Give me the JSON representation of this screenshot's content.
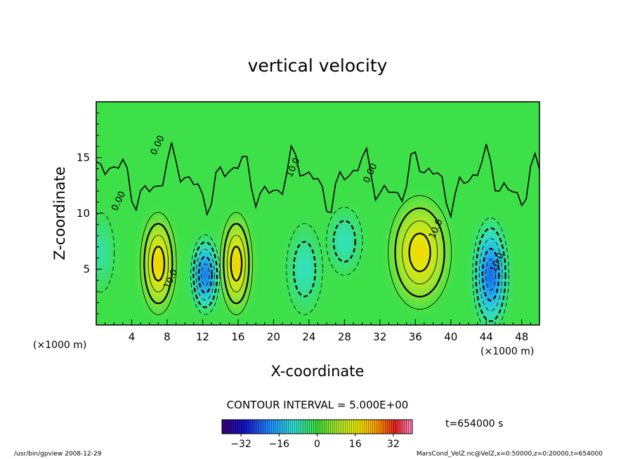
{
  "chart_data": {
    "type": "heatmap",
    "title": "vertical velocity",
    "xlabel": "X-coordinate",
    "ylabel": "Z-coordinate",
    "x_unit_label": "(×1000 m)",
    "z_unit_label": "(×1000 m)",
    "xlim": [
      0,
      50
    ],
    "ylim": [
      0,
      20
    ],
    "x_ticks": [
      4,
      8,
      12,
      16,
      20,
      24,
      28,
      32,
      36,
      40,
      44,
      48
    ],
    "y_ticks": [
      5,
      10,
      15
    ],
    "contour_interval_label": "CONTOUR INTERVAL = 5.000E+00",
    "contour_labels": [
      {
        "text": "10.0",
        "x": 8.7,
        "z": 4.0
      },
      {
        "text": "10.0",
        "x": 38.6,
        "z": 8.5
      },
      {
        "text": "10.0",
        "x": 45.5,
        "z": 5.5
      },
      {
        "text": "10.0",
        "x": 22.5,
        "z": 14.0
      },
      {
        "text": "0.00",
        "x": 7.2,
        "z": 16.0
      },
      {
        "text": "0.00",
        "x": 2.8,
        "z": 11.0
      },
      {
        "text": "0.00",
        "x": 31.2,
        "z": 13.5
      }
    ],
    "cells": [
      {
        "x": 0.5,
        "z": 6.5,
        "value": -8,
        "rx": 1.5,
        "rz": 3.5
      },
      {
        "x": 7.0,
        "z": 5.5,
        "value": 22,
        "rx": 2.0,
        "rz": 4.5
      },
      {
        "x": 12.3,
        "z": 4.5,
        "value": -26,
        "rx": 1.6,
        "rz": 3.5
      },
      {
        "x": 15.8,
        "z": 5.5,
        "value": 22,
        "rx": 1.8,
        "rz": 4.5
      },
      {
        "x": 23.5,
        "z": 5.0,
        "value": -10,
        "rx": 2.0,
        "rz": 4.0
      },
      {
        "x": 28.0,
        "z": 7.5,
        "value": -10,
        "rx": 2.0,
        "rz": 3.0
      },
      {
        "x": 36.5,
        "z": 6.5,
        "value": 20,
        "rx": 3.5,
        "rz": 5.0
      },
      {
        "x": 44.5,
        "z": 4.5,
        "value": -26,
        "rx": 2.0,
        "rz": 5.0
      }
    ],
    "colorbar": {
      "min": -40,
      "max": 40,
      "ticks": [
        -32,
        -16,
        0,
        16,
        32
      ]
    }
  },
  "time_label": "t=654000 s",
  "footer_left": "/usr/bin/gpview   2008-12-29",
  "footer_right": "MarsCond_VelZ.nc@VelZ,x=0:50000,z=0:20000,t=654000"
}
